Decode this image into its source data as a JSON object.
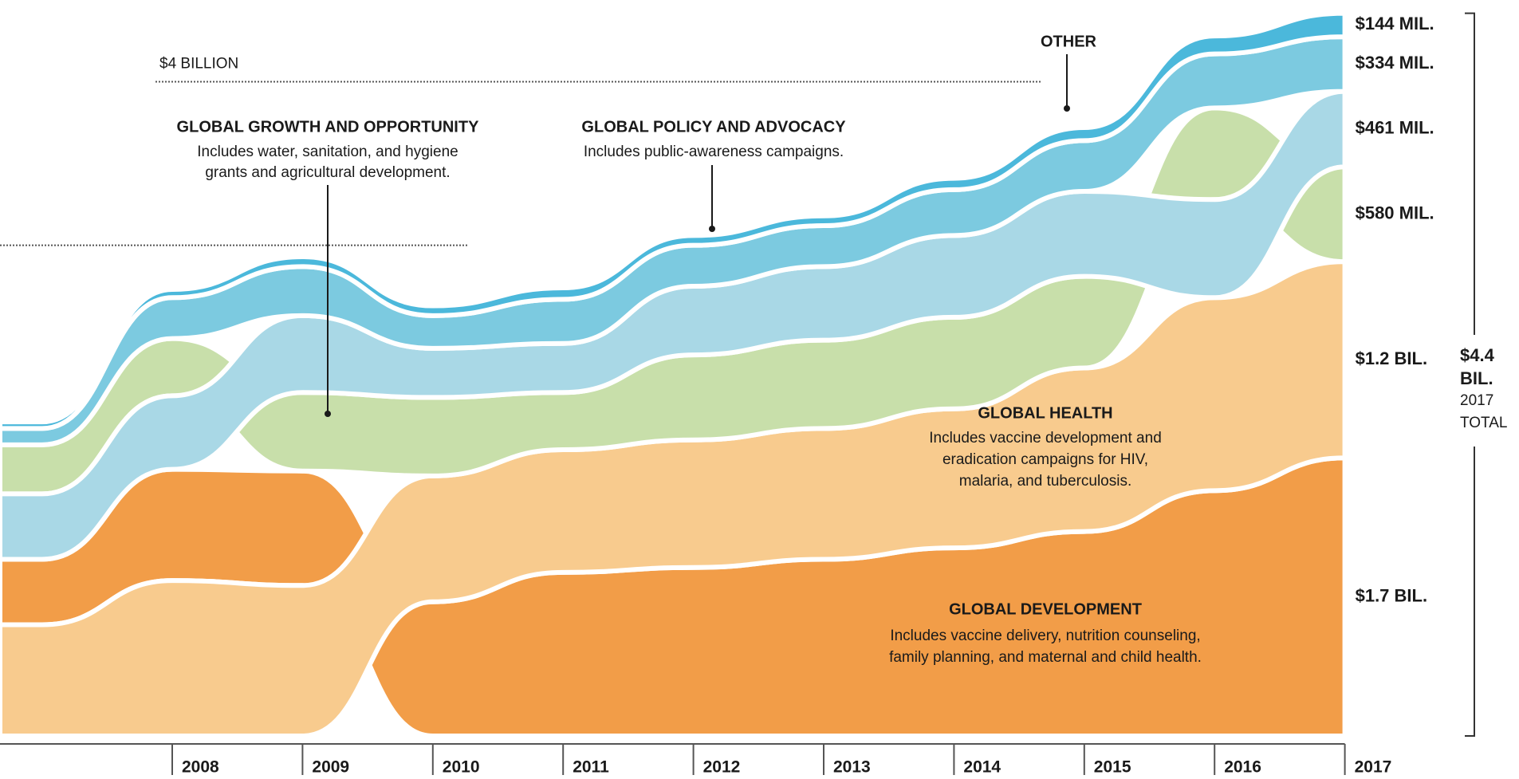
{
  "chart_data": {
    "type": "stream",
    "categories": [
      null,
      "2008",
      "2009",
      "2010",
      "2011",
      "2012",
      "2013",
      "2014",
      "2015",
      "2016",
      "2017"
    ],
    "ylim": [
      0,
      4500
    ],
    "reference_lines": [
      {
        "value": 4000,
        "label": "$4 BILLION"
      },
      {
        "value": 3000
      }
    ],
    "series": [
      {
        "name": "GLOBAL DEVELOPMENT",
        "description": [
          "Includes vaccine delivery, nutrition counseling,",
          "family planning, and maternal and child health."
        ],
        "color": "#f29d48",
        "values": [
          400,
          680,
          700,
          820,
          1000,
          1030,
          1080,
          1150,
          1250,
          1500,
          1700
        ],
        "value_labels": [
          null,
          null,
          null,
          null,
          null,
          null,
          null,
          null,
          null,
          null,
          "$1.7 BIL."
        ]
      },
      {
        "name": "GLOBAL HEALTH",
        "description": [
          "Includes vaccine development and",
          "eradication campaigns for HIV,",
          "malaria, and tuberculosis."
        ],
        "color": "#f8cb8e",
        "values": [
          680,
          950,
          920,
          770,
          750,
          780,
          800,
          850,
          1000,
          1180,
          1200
        ],
        "value_labels": [
          null,
          null,
          null,
          null,
          null,
          null,
          null,
          null,
          null,
          null,
          "$1.2 BIL."
        ]
      },
      {
        "name": "GLOBAL GROWTH AND OPPORTUNITY",
        "description": [
          "Includes water, sanitation, and hygiene",
          "grants and agricultural development."
        ],
        "color": "#c8dfaa",
        "values": [
          300,
          350,
          480,
          480,
          350,
          520,
          540,
          560,
          560,
          560,
          580
        ],
        "value_labels": [
          null,
          null,
          null,
          null,
          null,
          null,
          null,
          null,
          null,
          null,
          "$580 MIL."
        ]
      },
      {
        "color": "#a9d8e6",
        "values": [
          400,
          450,
          470,
          300,
          300,
          420,
          450,
          500,
          520,
          600,
          461
        ],
        "value_labels": [
          null,
          null,
          null,
          null,
          null,
          null,
          null,
          null,
          null,
          null,
          "$461 MIL."
        ]
      },
      {
        "name": "GLOBAL POLICY AND ADVOCACY",
        "description": [
          "Includes public-awareness campaigns."
        ],
        "color": "#7ccae0",
        "values": [
          100,
          250,
          300,
          200,
          270,
          250,
          250,
          280,
          310,
          330,
          334
        ],
        "value_labels": [
          null,
          null,
          null,
          null,
          null,
          null,
          null,
          null,
          null,
          null,
          "$334 MIL."
        ]
      },
      {
        "name": "OTHER",
        "color": "#4bb8db",
        "values": [
          40,
          50,
          60,
          60,
          70,
          60,
          60,
          70,
          80,
          110,
          144
        ],
        "value_labels": [
          null,
          null,
          null,
          null,
          null,
          null,
          null,
          null,
          null,
          null,
          "$144 MIL."
        ]
      }
    ],
    "total_label": [
      "$4.4",
      "BIL."
    ],
    "total_caption": [
      "2017",
      "TOTAL"
    ]
  }
}
